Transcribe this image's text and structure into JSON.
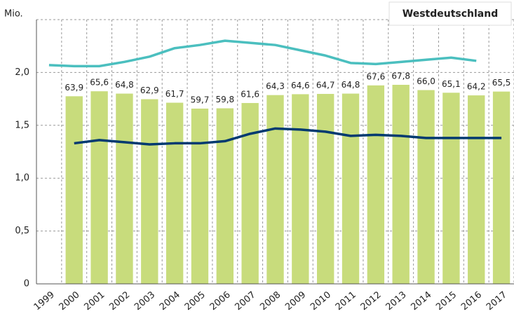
{
  "chart_data": {
    "type": "bar_line",
    "title": "Westdeutschland",
    "ylabel": "Mio.",
    "categories": [
      "1999",
      "2000",
      "2001",
      "2002",
      "2003",
      "2004",
      "2005",
      "2006",
      "2007",
      "2008",
      "2009",
      "2010",
      "2011",
      "2012",
      "2013",
      "2014",
      "2015",
      "2016",
      "2017"
    ],
    "ylim": [
      0,
      2.5
    ],
    "yticks": [
      0,
      {
        "value": 0.5,
        "label": "0,5"
      },
      {
        "value": 1,
        "label": "1,0"
      },
      {
        "value": 1.5,
        "label": "1,5"
      },
      {
        "value": 2,
        "label": "2,0"
      }
    ],
    "y2lim": [
      0,
      90
    ],
    "grid": true,
    "series": [
      {
        "kind": "bar",
        "axis": "y2",
        "color": "#c8dc7c",
        "values": [
          null,
          63.9,
          65.6,
          64.8,
          62.9,
          61.7,
          59.7,
          59.8,
          61.6,
          64.3,
          64.6,
          64.7,
          64.8,
          67.6,
          67.8,
          66.0,
          65.1,
          64.2,
          65.5
        ],
        "value_labels": [
          null,
          "63,9",
          "65,6",
          "64,8",
          "62,9",
          "61,7",
          "59,7",
          "59,8",
          "61,6",
          "64,3",
          "64,6",
          "64,7",
          "64,8",
          "67,6",
          "67,8",
          "66,0",
          "65,1",
          "64,2",
          "65,5"
        ]
      },
      {
        "kind": "line",
        "color": "#4bbfbf",
        "values": [
          2.07,
          2.06,
          2.06,
          2.1,
          2.15,
          2.23,
          2.26,
          2.3,
          2.28,
          2.26,
          2.21,
          2.16,
          2.09,
          2.08,
          2.1,
          2.12,
          2.14,
          2.11,
          null
        ]
      },
      {
        "kind": "line",
        "color": "#003a70",
        "values": [
          null,
          1.33,
          1.36,
          1.34,
          1.32,
          1.33,
          1.33,
          1.35,
          1.42,
          1.47,
          1.46,
          1.44,
          1.4,
          1.41,
          1.4,
          1.38,
          1.38,
          1.38,
          1.38
        ]
      }
    ]
  }
}
